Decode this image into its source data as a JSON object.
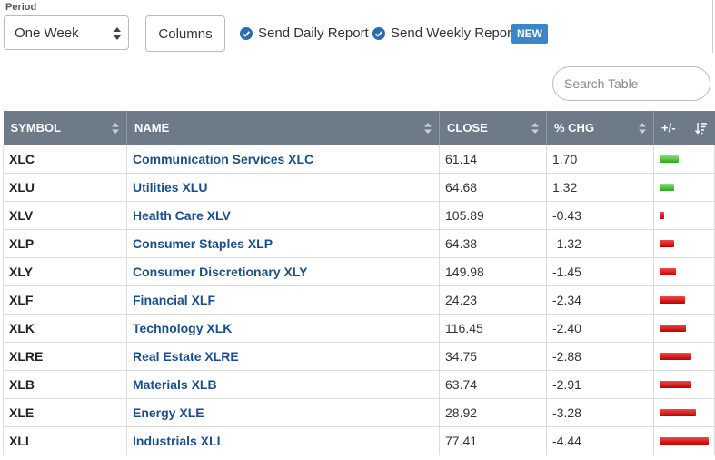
{
  "period": {
    "label": "Period",
    "value": "One Week"
  },
  "columns_button": "Columns",
  "send_daily": "Send Daily Report",
  "send_weekly": "Send Weekly Report",
  "new_badge": "NEW",
  "search": {
    "placeholder": "Search Table"
  },
  "colors": {
    "header": "#6d7b89",
    "link": "#1b4f8a",
    "check": "#2a6cb0",
    "badge": "#3a86c8",
    "pos": "#2aa81a",
    "neg": "#c10000"
  },
  "table": {
    "headers": {
      "symbol": "SYMBOL",
      "name": "NAME",
      "close": "CLOSE",
      "chg": "% CHG",
      "plusminus": "+/-"
    },
    "rows": [
      {
        "symbol": "XLC",
        "name": "Communication Services XLC",
        "close": "61.14",
        "chg": "1.70",
        "value": 1.7
      },
      {
        "symbol": "XLU",
        "name": "Utilities XLU",
        "close": "64.68",
        "chg": "1.32",
        "value": 1.32
      },
      {
        "symbol": "XLV",
        "name": "Health Care XLV",
        "close": "105.89",
        "chg": "-0.43",
        "value": -0.43
      },
      {
        "symbol": "XLP",
        "name": "Consumer Staples XLP",
        "close": "64.38",
        "chg": "-1.32",
        "value": -1.32
      },
      {
        "symbol": "XLY",
        "name": "Consumer Discretionary XLY",
        "close": "149.98",
        "chg": "-1.45",
        "value": -1.45
      },
      {
        "symbol": "XLF",
        "name": "Financial XLF",
        "close": "24.23",
        "chg": "-2.34",
        "value": -2.34
      },
      {
        "symbol": "XLK",
        "name": "Technology XLK",
        "close": "116.45",
        "chg": "-2.40",
        "value": -2.4
      },
      {
        "symbol": "XLRE",
        "name": "Real Estate XLRE",
        "close": "34.75",
        "chg": "-2.88",
        "value": -2.88
      },
      {
        "symbol": "XLB",
        "name": "Materials XLB",
        "close": "63.74",
        "chg": "-2.91",
        "value": -2.91
      },
      {
        "symbol": "XLE",
        "name": "Energy XLE",
        "close": "28.92",
        "chg": "-3.28",
        "value": -3.28
      },
      {
        "symbol": "XLI",
        "name": "Industrials XLI",
        "close": "77.41",
        "chg": "-4.44",
        "value": -4.44
      }
    ]
  }
}
